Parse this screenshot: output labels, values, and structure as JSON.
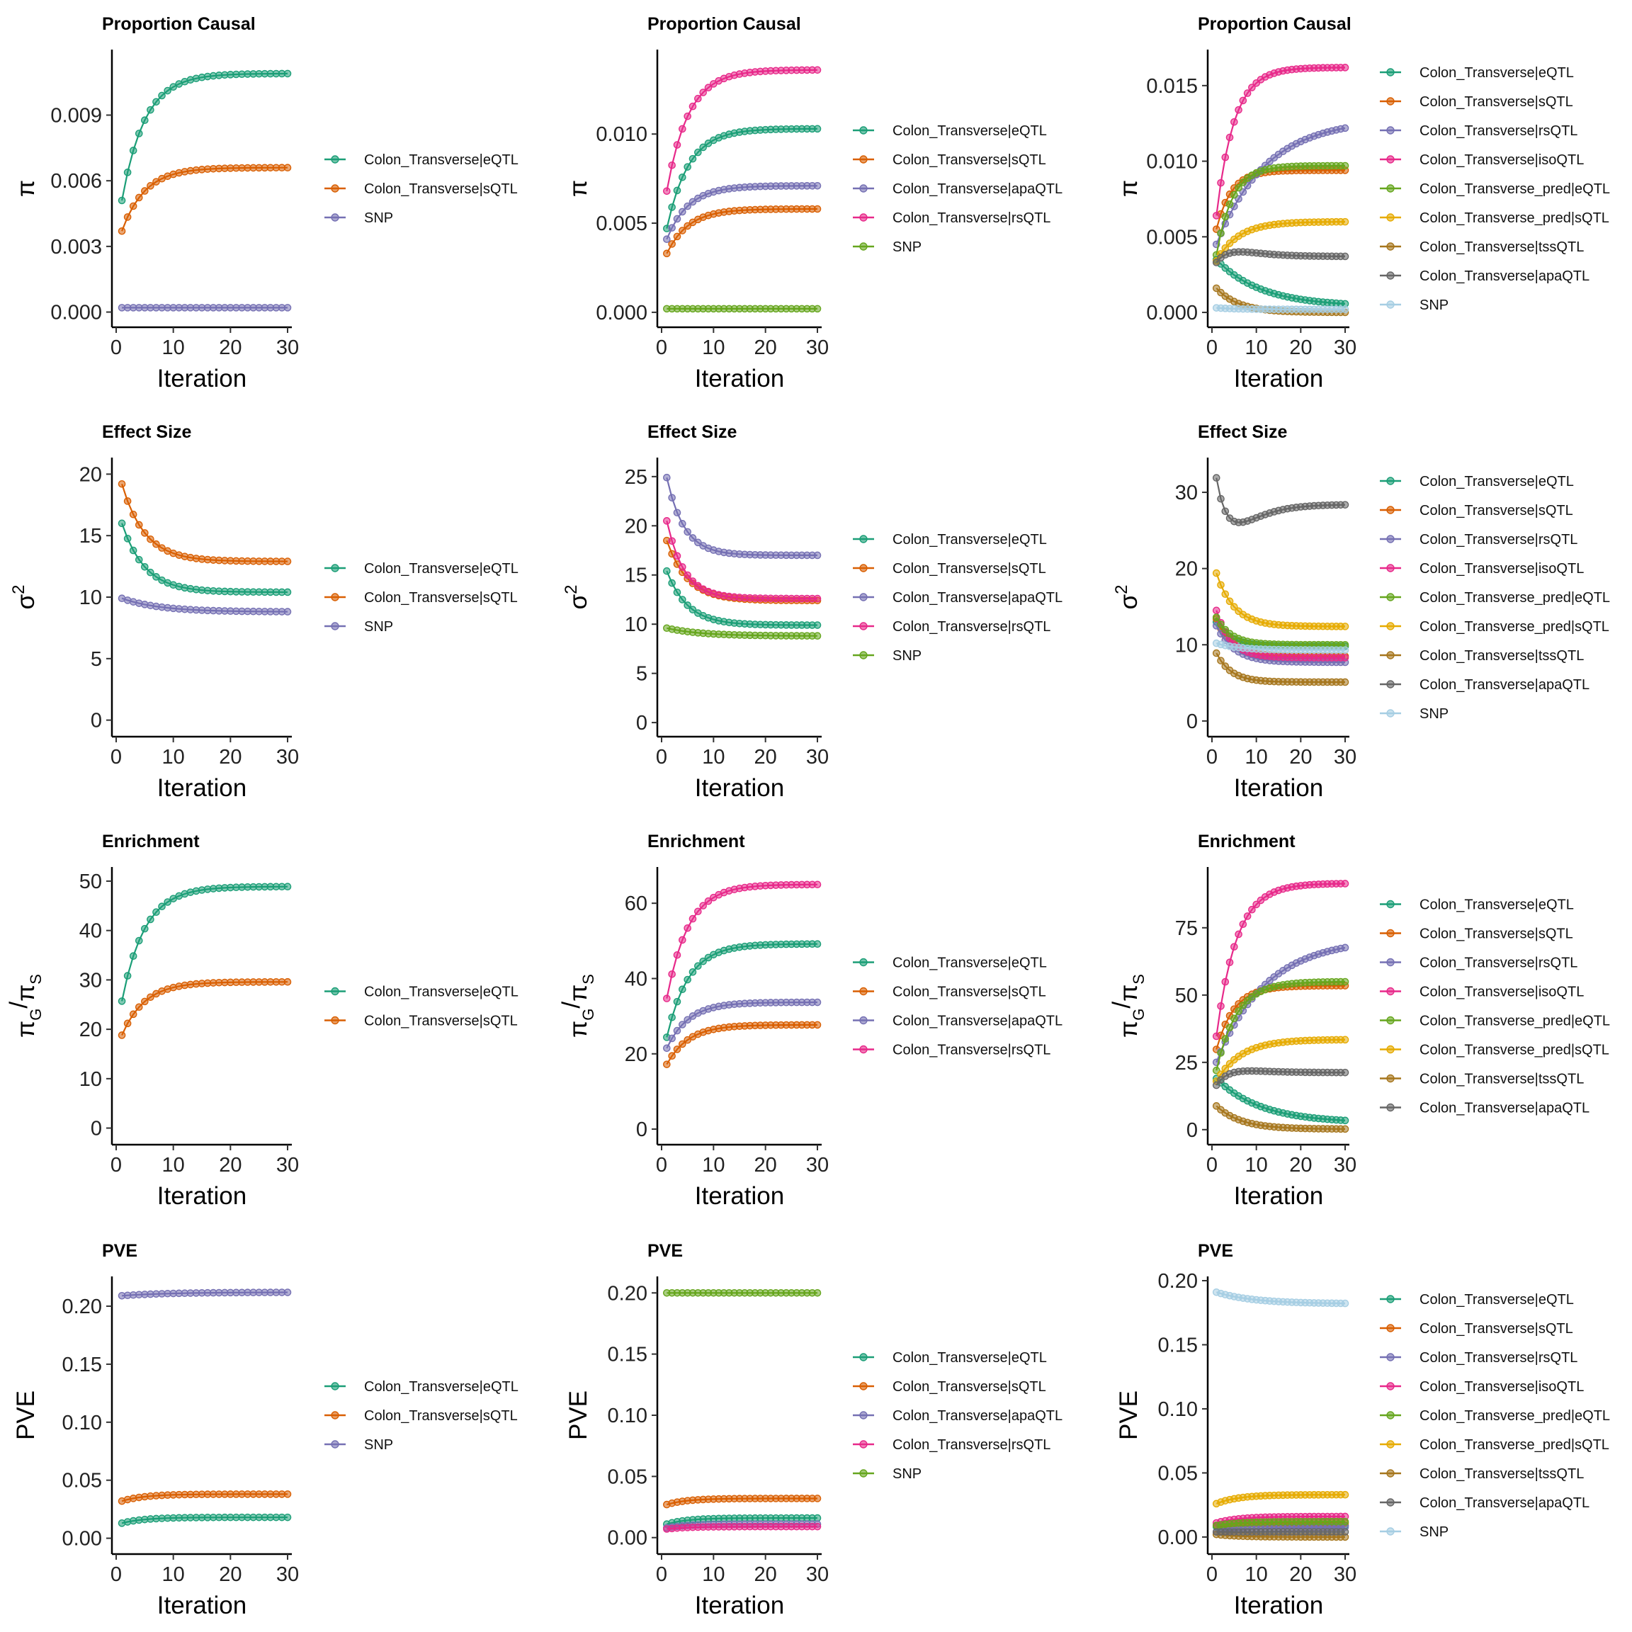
{
  "colors": {
    "Colon_Transverse|eQTL": "#1b9e77",
    "Colon_Transverse|sQTL": "#d95f02",
    "Colon_Transverse|rsQTL": "#7570b3",
    "Colon_Transverse|isoQTL": "#e7298a",
    "Colon_Transverse_pred|eQTL": "#66a61e",
    "Colon_Transverse_pred|sQTL": "#e6ab02",
    "Colon_Transverse|tssQTL": "#a6761d",
    "Colon_Transverse|apaQTL": "#666666",
    "SNP": "#a6cee3",
    "apaQTL_col2": "#7570b3",
    "rsQTL_col2": "#e7298a",
    "SNP_col1": "#7570b3",
    "SNP_col2": "#66a61e"
  },
  "chart_data": [
    {
      "id": "r0c0",
      "type": "line",
      "title": "Proportion Causal",
      "xlabel": "Iteration",
      "ylabel": "π",
      "ylim": [
        -0.0005,
        0.0118
      ],
      "yticks": [
        0,
        0.003,
        0.006,
        0.009
      ],
      "ytick_labels": [
        "0.000",
        "0.003",
        "0.006",
        "0.009"
      ],
      "xticks": [
        0,
        10,
        20,
        30
      ],
      "xlim": [
        0,
        30
      ],
      "series": [
        {
          "name": "Colon_Transverse|eQTL",
          "color": "#1b9e77",
          "start": 0.0051,
          "end": 0.0109,
          "rate": 0.25
        },
        {
          "name": "Colon_Transverse|sQTL",
          "color": "#d95f02",
          "start": 0.0037,
          "end": 0.0066,
          "rate": 0.25
        },
        {
          "name": "SNP",
          "color": "#7570b3",
          "start": 0.0002,
          "end": 0.0002,
          "rate": 0.2
        }
      ],
      "legend": [
        "Colon_Transverse|eQTL",
        "Colon_Transverse|sQTL",
        "SNP"
      ]
    },
    {
      "id": "r0c1",
      "type": "line",
      "title": "Proportion Causal",
      "xlabel": "Iteration",
      "ylabel": "π",
      "ylim": [
        -0.0006,
        0.0145
      ],
      "yticks": [
        0,
        0.005,
        0.01
      ],
      "ytick_labels": [
        "0.000",
        "0.005",
        "0.010"
      ],
      "xticks": [
        0,
        10,
        20,
        30
      ],
      "xlim": [
        0,
        30
      ],
      "series": [
        {
          "name": "Colon_Transverse|eQTL",
          "color": "#1b9e77",
          "start": 0.0047,
          "end": 0.0103,
          "rate": 0.24
        },
        {
          "name": "Colon_Transverse|sQTL",
          "color": "#d95f02",
          "start": 0.0033,
          "end": 0.0058,
          "rate": 0.24
        },
        {
          "name": "Colon_Transverse|apaQTL",
          "color": "#7570b3",
          "start": 0.0041,
          "end": 0.0071,
          "rate": 0.24
        },
        {
          "name": "Colon_Transverse|rsQTL",
          "color": "#e7298a",
          "start": 0.0068,
          "end": 0.0136,
          "rate": 0.24
        },
        {
          "name": "SNP",
          "color": "#66a61e",
          "start": 0.0002,
          "end": 0.0002,
          "rate": 0.2
        }
      ],
      "legend": [
        "Colon_Transverse|eQTL",
        "Colon_Transverse|sQTL",
        "Colon_Transverse|apaQTL",
        "Colon_Transverse|rsQTL",
        "SNP"
      ]
    },
    {
      "id": "r0c2",
      "type": "line",
      "title": "Proportion Causal",
      "xlabel": "Iteration",
      "ylabel": "π",
      "ylim": [
        -0.0007,
        0.0171
      ],
      "yticks": [
        0,
        0.005,
        0.01,
        0.015
      ],
      "ytick_labels": [
        "0.000",
        "0.005",
        "0.010",
        "0.015"
      ],
      "xticks": [
        0,
        10,
        20,
        30
      ],
      "xlim": [
        0,
        30
      ],
      "series": [
        {
          "name": "Colon_Transverse|eQTL",
          "color": "#1b9e77",
          "start": 0.0035,
          "end": 0.0004,
          "rate": 0.1
        },
        {
          "name": "Colon_Transverse|sQTL",
          "color": "#d95f02",
          "start": 0.0055,
          "end": 0.0094,
          "rate": 0.3
        },
        {
          "name": "Colon_Transverse|rsQTL",
          "color": "#7570b3",
          "start": 0.0045,
          "end": 0.0128,
          "rate": 0.09
        },
        {
          "name": "Colon_Transverse|isoQTL",
          "color": "#e7298a",
          "start": 0.0064,
          "end": 0.0162,
          "rate": 0.25
        },
        {
          "name": "Colon_Transverse_pred|eQTL",
          "color": "#66a61e",
          "start": 0.0038,
          "end": 0.0097,
          "rate": 0.28
        },
        {
          "name": "Colon_Transverse_pred|sQTL",
          "color": "#e6ab02",
          "start": 0.0034,
          "end": 0.006,
          "rate": 0.2
        },
        {
          "name": "Colon_Transverse|tssQTL",
          "color": "#a6761d",
          "start": 0.0016,
          "end": 0.0,
          "rate": 0.2
        },
        {
          "name": "Colon_Transverse|apaQTL",
          "color": "#666666",
          "start": 0.0033,
          "end": 0.0037,
          "rate": 0.3,
          "hump": 0.0004
        },
        {
          "name": "SNP",
          "color": "#a6cee3",
          "start": 0.0003,
          "end": 0.0002,
          "rate": 0.2
        }
      ],
      "legend": [
        "Colon_Transverse|eQTL",
        "Colon_Transverse|sQTL",
        "Colon_Transverse|rsQTL",
        "Colon_Transverse|isoQTL",
        "Colon_Transverse_pred|eQTL",
        "Colon_Transverse_pred|sQTL",
        "Colon_Transverse|tssQTL",
        "Colon_Transverse|apaQTL",
        "SNP"
      ]
    },
    {
      "id": "r1c0",
      "type": "line",
      "title": "Effect Size",
      "xlabel": "Iteration",
      "ylabel": "σ²",
      "ylim": [
        -1,
        21
      ],
      "yticks": [
        0,
        5,
        10,
        15,
        20
      ],
      "ytick_labels": [
        "0",
        "5",
        "10",
        "15",
        "20"
      ],
      "xticks": [
        0,
        10,
        20,
        30
      ],
      "xlim": [
        0,
        30
      ],
      "series": [
        {
          "name": "Colon_Transverse|eQTL",
          "color": "#1b9e77",
          "start": 16.0,
          "end": 10.4,
          "rate": 0.25
        },
        {
          "name": "Colon_Transverse|sQTL",
          "color": "#d95f02",
          "start": 19.2,
          "end": 12.9,
          "rate": 0.25
        },
        {
          "name": "SNP",
          "color": "#7570b3",
          "start": 9.9,
          "end": 8.8,
          "rate": 0.15
        }
      ],
      "legend": [
        "Colon_Transverse|eQTL",
        "Colon_Transverse|sQTL",
        "SNP"
      ]
    },
    {
      "id": "r1c1",
      "type": "line",
      "title": "Effect Size",
      "xlabel": "Iteration",
      "ylabel": "σ²",
      "ylim": [
        -1,
        26.5
      ],
      "yticks": [
        0,
        5,
        10,
        15,
        20,
        25
      ],
      "ytick_labels": [
        "0",
        "5",
        "10",
        "15",
        "20",
        "25"
      ],
      "xticks": [
        0,
        10,
        20,
        30
      ],
      "xlim": [
        0,
        30
      ],
      "series": [
        {
          "name": "Colon_Transverse|eQTL",
          "color": "#1b9e77",
          "start": 15.4,
          "end": 9.9,
          "rate": 0.25
        },
        {
          "name": "Colon_Transverse|sQTL",
          "color": "#d95f02",
          "start": 18.5,
          "end": 12.4,
          "rate": 0.25
        },
        {
          "name": "Colon_Transverse|apaQTL",
          "color": "#7570b3",
          "start": 24.9,
          "end": 17.0,
          "rate": 0.3
        },
        {
          "name": "Colon_Transverse|rsQTL",
          "color": "#e7298a",
          "start": 20.5,
          "end": 12.6,
          "rate": 0.3
        },
        {
          "name": "SNP",
          "color": "#66a61e",
          "start": 9.6,
          "end": 8.8,
          "rate": 0.15
        }
      ],
      "legend": [
        "Colon_Transverse|eQTL",
        "Colon_Transverse|sQTL",
        "Colon_Transverse|apaQTL",
        "Colon_Transverse|rsQTL",
        "SNP"
      ]
    },
    {
      "id": "r1c2",
      "type": "line",
      "title": "Effect Size",
      "xlabel": "Iteration",
      "ylabel": "σ²",
      "ylim": [
        -1.5,
        34
      ],
      "yticks": [
        0,
        10,
        20,
        30
      ],
      "ytick_labels": [
        "0",
        "10",
        "20",
        "30"
      ],
      "xticks": [
        0,
        10,
        20,
        30
      ],
      "xlim": [
        0,
        30
      ],
      "series": [
        {
          "name": "Colon_Transverse|eQTL",
          "color": "#1b9e77",
          "start": 13.0,
          "end": 9.8,
          "rate": 0.3
        },
        {
          "name": "Colon_Transverse|sQTL",
          "color": "#d95f02",
          "start": 13.4,
          "end": 8.5,
          "rate": 0.3
        },
        {
          "name": "Colon_Transverse|rsQTL",
          "color": "#7570b3",
          "start": 12.5,
          "end": 7.7,
          "rate": 0.25
        },
        {
          "name": "Colon_Transverse|isoQTL",
          "color": "#e7298a",
          "start": 14.5,
          "end": 8.3,
          "rate": 0.3
        },
        {
          "name": "Colon_Transverse_pred|eQTL",
          "color": "#66a61e",
          "start": 13.6,
          "end": 10.0,
          "rate": 0.3
        },
        {
          "name": "Colon_Transverse_pred|sQTL",
          "color": "#e6ab02",
          "start": 19.4,
          "end": 12.4,
          "rate": 0.25
        },
        {
          "name": "Colon_Transverse|tssQTL",
          "color": "#a6761d",
          "start": 8.9,
          "end": 5.1,
          "rate": 0.3
        },
        {
          "name": "Colon_Transverse|apaQTL",
          "color": "#666666",
          "start": 31.9,
          "end": 28.4,
          "rate": 0.45,
          "hump": -2.8
        },
        {
          "name": "SNP",
          "color": "#a6cee3",
          "start": 10.2,
          "end": 9.3,
          "rate": 0.2
        }
      ],
      "legend": [
        "Colon_Transverse|eQTL",
        "Colon_Transverse|sQTL",
        "Colon_Transverse|rsQTL",
        "Colon_Transverse|isoQTL",
        "Colon_Transverse_pred|eQTL",
        "Colon_Transverse_pred|sQTL",
        "Colon_Transverse|tssQTL",
        "Colon_Transverse|apaQTL",
        "SNP"
      ]
    },
    {
      "id": "r2c0",
      "type": "line",
      "title": "Enrichment",
      "xlabel": "Iteration",
      "ylabel": "πG/πS",
      "ylim": [
        -2.5,
        52
      ],
      "yticks": [
        0,
        10,
        20,
        30,
        40,
        50
      ],
      "ytick_labels": [
        "0",
        "10",
        "20",
        "30",
        "40",
        "50"
      ],
      "xticks": [
        0,
        10,
        20,
        30
      ],
      "xlim": [
        0,
        30
      ],
      "series": [
        {
          "name": "Colon_Transverse|eQTL",
          "color": "#1b9e77",
          "start": 25.7,
          "end": 48.9,
          "rate": 0.25
        },
        {
          "name": "Colon_Transverse|sQTL",
          "color": "#d95f02",
          "start": 18.8,
          "end": 29.6,
          "rate": 0.25
        }
      ],
      "legend": [
        "Colon_Transverse|eQTL",
        "Colon_Transverse|sQTL"
      ]
    },
    {
      "id": "r2c1",
      "type": "line",
      "title": "Enrichment",
      "xlabel": "Iteration",
      "ylabel": "πG/πS",
      "ylim": [
        -3,
        68.5
      ],
      "yticks": [
        0,
        20,
        40,
        60
      ],
      "ytick_labels": [
        "0",
        "20",
        "40",
        "60"
      ],
      "xticks": [
        0,
        10,
        20,
        30
      ],
      "xlim": [
        0,
        30
      ],
      "series": [
        {
          "name": "Colon_Transverse|eQTL",
          "color": "#1b9e77",
          "start": 24.4,
          "end": 49.2,
          "rate": 0.24
        },
        {
          "name": "Colon_Transverse|sQTL",
          "color": "#d95f02",
          "start": 17.2,
          "end": 27.7,
          "rate": 0.24
        },
        {
          "name": "Colon_Transverse|apaQTL",
          "color": "#7570b3",
          "start": 21.5,
          "end": 33.7,
          "rate": 0.24
        },
        {
          "name": "Colon_Transverse|rsQTL",
          "color": "#e7298a",
          "start": 34.7,
          "end": 65.0,
          "rate": 0.24
        }
      ],
      "legend": [
        "Colon_Transverse|eQTL",
        "Colon_Transverse|sQTL",
        "Colon_Transverse|apaQTL",
        "Colon_Transverse|rsQTL"
      ]
    },
    {
      "id": "r2c2",
      "type": "line",
      "title": "Enrichment",
      "xlabel": "Iteration",
      "ylabel": "πG/πS",
      "ylim": [
        -4,
        96
      ],
      "yticks": [
        0,
        25,
        50,
        75
      ],
      "ytick_labels": [
        "0",
        "25",
        "50",
        "75"
      ],
      "xticks": [
        0,
        10,
        20,
        30
      ],
      "xlim": [
        0,
        30
      ],
      "series": [
        {
          "name": "Colon_Transverse|eQTL",
          "color": "#1b9e77",
          "start": 19.0,
          "end": 2.5,
          "rate": 0.1
        },
        {
          "name": "Colon_Transverse|sQTL",
          "color": "#d95f02",
          "start": 29.8,
          "end": 53.5,
          "rate": 0.25
        },
        {
          "name": "Colon_Transverse|rsQTL",
          "color": "#7570b3",
          "start": 25.0,
          "end": 71.0,
          "rate": 0.09
        },
        {
          "name": "Colon_Transverse|isoQTL",
          "color": "#e7298a",
          "start": 34.7,
          "end": 91.5,
          "rate": 0.22
        },
        {
          "name": "Colon_Transverse_pred|eQTL",
          "color": "#66a61e",
          "start": 22.0,
          "end": 55.0,
          "rate": 0.22
        },
        {
          "name": "Colon_Transverse_pred|sQTL",
          "color": "#e6ab02",
          "start": 18.0,
          "end": 33.5,
          "rate": 0.18
        },
        {
          "name": "Colon_Transverse|tssQTL",
          "color": "#a6761d",
          "start": 8.8,
          "end": 0.2,
          "rate": 0.18
        },
        {
          "name": "Colon_Transverse|apaQTL",
          "color": "#666666",
          "start": 16.5,
          "end": 21.2,
          "rate": 0.35,
          "hump": 1.2
        }
      ],
      "legend": [
        "Colon_Transverse|eQTL",
        "Colon_Transverse|sQTL",
        "Colon_Transverse|rsQTL",
        "Colon_Transverse|isoQTL",
        "Colon_Transverse_pred|eQTL",
        "Colon_Transverse_pred|sQTL",
        "Colon_Transverse|tssQTL",
        "Colon_Transverse|apaQTL"
      ]
    },
    {
      "id": "r3c0",
      "type": "line",
      "title": "PVE",
      "xlabel": "Iteration",
      "ylabel": "PVE",
      "ylim": [
        -0.01,
        0.222
      ],
      "yticks": [
        0,
        0.05,
        0.1,
        0.15,
        0.2
      ],
      "ytick_labels": [
        "0.00",
        "0.05",
        "0.10",
        "0.15",
        "0.20"
      ],
      "xticks": [
        0,
        10,
        20,
        30
      ],
      "xlim": [
        0,
        30
      ],
      "series": [
        {
          "name": "Colon_Transverse|eQTL",
          "color": "#1b9e77",
          "start": 0.013,
          "end": 0.018,
          "rate": 0.25
        },
        {
          "name": "Colon_Transverse|sQTL",
          "color": "#d95f02",
          "start": 0.032,
          "end": 0.038,
          "rate": 0.25
        },
        {
          "name": "SNP",
          "color": "#7570b3",
          "start": 0.209,
          "end": 0.212,
          "rate": 0.12
        }
      ],
      "legend": [
        "Colon_Transverse|eQTL",
        "Colon_Transverse|sQTL",
        "SNP"
      ]
    },
    {
      "id": "r3c1",
      "type": "line",
      "title": "PVE",
      "xlabel": "Iteration",
      "ylabel": "PVE",
      "ylim": [
        -0.01,
        0.21
      ],
      "yticks": [
        0,
        0.05,
        0.1,
        0.15,
        0.2
      ],
      "ytick_labels": [
        "0.00",
        "0.05",
        "0.10",
        "0.15",
        "0.20"
      ],
      "xticks": [
        0,
        10,
        20,
        30
      ],
      "xlim": [
        0,
        30
      ],
      "series": [
        {
          "name": "Colon_Transverse|eQTL",
          "color": "#1b9e77",
          "start": 0.011,
          "end": 0.016,
          "rate": 0.25
        },
        {
          "name": "Colon_Transverse|sQTL",
          "color": "#d95f02",
          "start": 0.027,
          "end": 0.032,
          "rate": 0.25
        },
        {
          "name": "Colon_Transverse|apaQTL",
          "color": "#7570b3",
          "start": 0.008,
          "end": 0.011,
          "rate": 0.25
        },
        {
          "name": "Colon_Transverse|rsQTL",
          "color": "#e7298a",
          "start": 0.007,
          "end": 0.009,
          "rate": 0.25
        },
        {
          "name": "SNP",
          "color": "#66a61e",
          "start": 0.2,
          "end": 0.2,
          "rate": 0.2
        }
      ],
      "legend": [
        "Colon_Transverse|eQTL",
        "Colon_Transverse|sQTL",
        "Colon_Transverse|apaQTL",
        "Colon_Transverse|rsQTL",
        "SNP"
      ]
    },
    {
      "id": "r3c2",
      "type": "line",
      "title": "PVE",
      "xlabel": "Iteration",
      "ylabel": "PVE",
      "ylim": [
        -0.01,
        0.2
      ],
      "yticks": [
        0,
        0.05,
        0.1,
        0.15,
        0.2
      ],
      "ytick_labels": [
        "0.00",
        "0.05",
        "0.10",
        "0.15",
        "0.20"
      ],
      "xticks": [
        0,
        10,
        20,
        30
      ],
      "xlim": [
        0,
        30
      ],
      "series": [
        {
          "name": "Colon_Transverse|eQTL",
          "color": "#1b9e77",
          "start": 0.008,
          "end": 0.009,
          "rate": 0.2
        },
        {
          "name": "Colon_Transverse|sQTL",
          "color": "#d95f02",
          "start": 0.009,
          "end": 0.011,
          "rate": 0.2
        },
        {
          "name": "Colon_Transverse|rsQTL",
          "color": "#7570b3",
          "start": 0.004,
          "end": 0.008,
          "rate": 0.1
        },
        {
          "name": "Colon_Transverse|isoQTL",
          "color": "#e7298a",
          "start": 0.011,
          "end": 0.016,
          "rate": 0.2
        },
        {
          "name": "Colon_Transverse_pred|eQTL",
          "color": "#66a61e",
          "start": 0.009,
          "end": 0.012,
          "rate": 0.2
        },
        {
          "name": "Colon_Transverse_pred|sQTL",
          "color": "#e6ab02",
          "start": 0.026,
          "end": 0.033,
          "rate": 0.2
        },
        {
          "name": "Colon_Transverse|tssQTL",
          "color": "#a6761d",
          "start": 0.002,
          "end": 0.0,
          "rate": 0.2
        },
        {
          "name": "Colon_Transverse|apaQTL",
          "color": "#666666",
          "start": 0.004,
          "end": 0.004,
          "rate": 0.2
        },
        {
          "name": "SNP",
          "color": "#a6cee3",
          "start": 0.191,
          "end": 0.182,
          "rate": 0.12
        }
      ],
      "legend": [
        "Colon_Transverse|eQTL",
        "Colon_Transverse|sQTL",
        "Colon_Transverse|rsQTL",
        "Colon_Transverse|isoQTL",
        "Colon_Transverse_pred|eQTL",
        "Colon_Transverse_pred|sQTL",
        "Colon_Transverse|tssQTL",
        "Colon_Transverse|apaQTL",
        "SNP"
      ]
    }
  ]
}
